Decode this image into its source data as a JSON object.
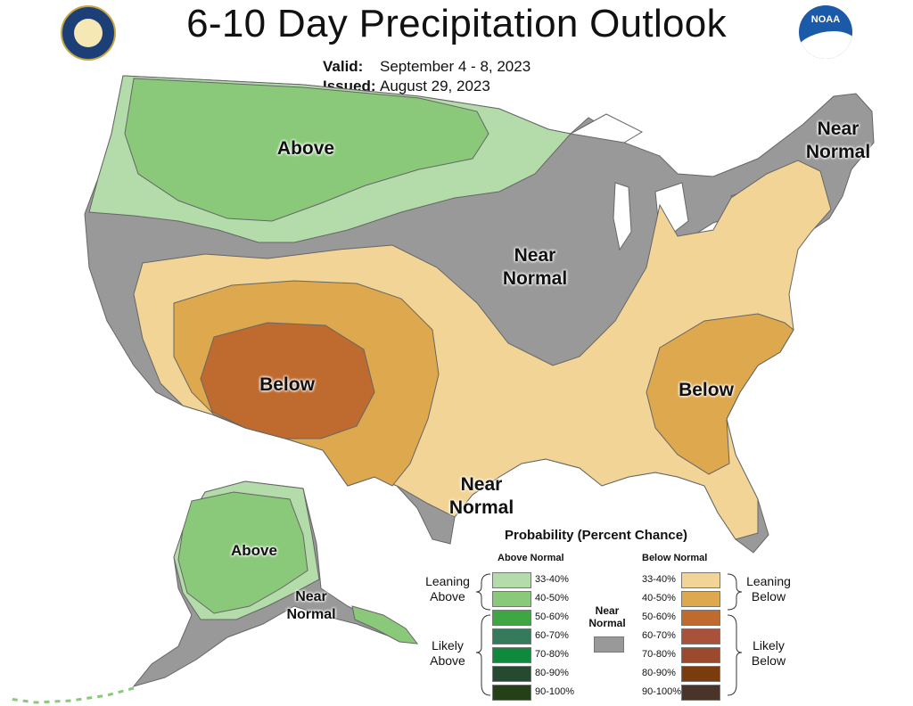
{
  "header": {
    "title": "6-10 Day Precipitation Outlook",
    "valid_label": "Valid:",
    "valid_value": "September 4 - 8, 2023",
    "issued_label": "Issued:",
    "issued_value": "August 29, 2023"
  },
  "logos": {
    "left": "commerce-seal-icon",
    "right": "noaa-logo-icon",
    "noaa_text": "NOAA"
  },
  "map_labels": {
    "north_above": "Above",
    "midwest_near": "Near Normal",
    "northeast_near": "Near Normal",
    "southwest_below": "Below",
    "southeast_below": "Below",
    "gulf_near": "Near Normal",
    "alaska_above": "Above",
    "alaska_near": "Near Normal"
  },
  "legend": {
    "title": "Probability (Percent Chance)",
    "above_header": "Above Normal",
    "below_header": "Below Normal",
    "near_label": "Near Normal",
    "near_color": "#999999",
    "leaning_above": "Leaning Above",
    "likely_above": "Likely Above",
    "leaning_below": "Leaning Below",
    "likely_below": "Likely Below",
    "above": [
      {
        "range": "33-40%",
        "color": "#b3dcaa"
      },
      {
        "range": "40-50%",
        "color": "#8ac97a"
      },
      {
        "range": "50-60%",
        "color": "#3ea743"
      },
      {
        "range": "60-70%",
        "color": "#357a5b"
      },
      {
        "range": "70-80%",
        "color": "#0f8a3c"
      },
      {
        "range": "80-90%",
        "color": "#254a2f"
      },
      {
        "range": "90-100%",
        "color": "#234016"
      }
    ],
    "below": [
      {
        "range": "33-40%",
        "color": "#f2d596"
      },
      {
        "range": "40-50%",
        "color": "#dda84e"
      },
      {
        "range": "50-60%",
        "color": "#bf6b30"
      },
      {
        "range": "60-70%",
        "color": "#a8523c"
      },
      {
        "range": "70-80%",
        "color": "#9b4a2e"
      },
      {
        "range": "80-90%",
        "color": "#7b3c0d"
      },
      {
        "range": "90-100%",
        "color": "#4a3328"
      }
    ]
  }
}
